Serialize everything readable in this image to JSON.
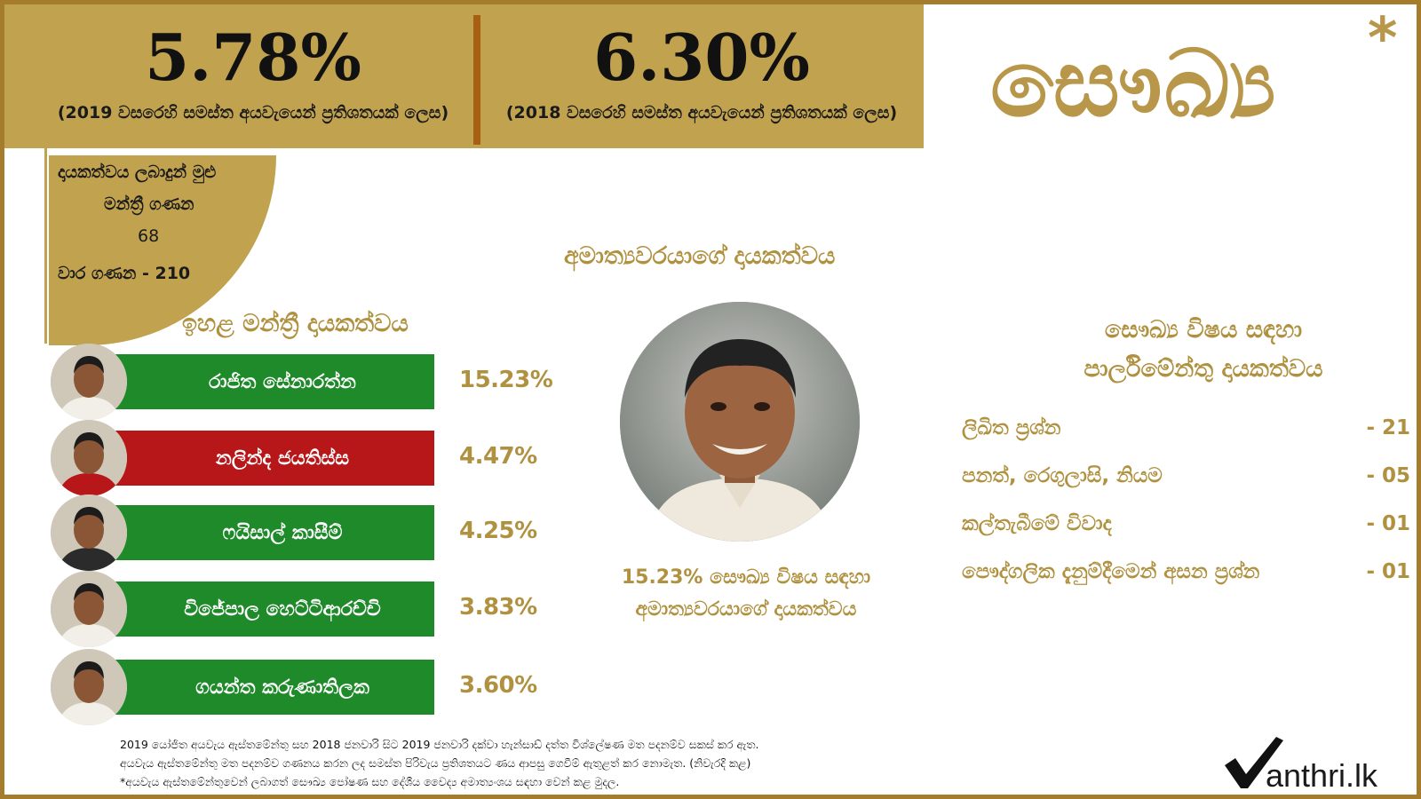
{
  "header": {
    "stat_2019": {
      "value": "5.78%",
      "caption": "(2019 වසරෙහි සමස්ත අයවැයෙන් ප්‍රතිශතයක් ලෙස)"
    },
    "stat_2018": {
      "value": "6.30%",
      "caption": "(2018 වසරෙහි සමස්ත අයවැයෙන් ප්‍රතිශතයක් ලෙස)"
    },
    "title": "සෞඛ්‍ය",
    "title_asterisk": "*"
  },
  "totals": {
    "label_line1": "දායකත්වය ලබාදුන් මුළු",
    "label_line2": "මන්ත්‍රී ගණන",
    "members_count": "68",
    "turns_label": "වාර ගණන - 210"
  },
  "top_members": {
    "title": "ඉහළ මන්ත්‍රී දායකත්වය",
    "items": [
      {
        "name": "රාජිත සේනාරත්න",
        "percent": "15.23%",
        "bar_color": "#1f8a2a"
      },
      {
        "name": "නලින්ද ජයතිස්ස",
        "percent": "4.47%",
        "bar_color": "#b8171a"
      },
      {
        "name": "ෆයිසාල් කාසීම්",
        "percent": "4.25%",
        "bar_color": "#1f8a2a"
      },
      {
        "name": "විජේපාල හෙට්ටිආරච්චි",
        "percent": "3.83%",
        "bar_color": "#1f8a2a"
      },
      {
        "name": "ගයන්ත කරුණාතිලක",
        "percent": "3.60%",
        "bar_color": "#1f8a2a"
      }
    ]
  },
  "minister": {
    "heading": "අමාත්‍යවරයාගේ දායකත්වය",
    "caption_line1": "15.23% සෞඛ්‍ය විෂය සඳහා",
    "caption_line2": "අමාත්‍යවරයාගේ දායකත්වය"
  },
  "parliament": {
    "heading_line1": "සෞඛ්‍ය විෂය සඳහා",
    "heading_line2": "පාර්ලිමේන්තු දායකත්වය",
    "items": [
      {
        "label": "ලිඛිත ප්‍රශ්න",
        "value": "- 21"
      },
      {
        "label": "පනත්, රෙගුලාසි, නියම",
        "value": "- 05"
      },
      {
        "label": "කල්තැබීමේ විවාද",
        "value": "- 01"
      },
      {
        "label": "පෞද්ගලික දැනුම්දීමෙන් අසන ප්‍රශ්න",
        "value": "- 01"
      }
    ]
  },
  "footnotes": {
    "line1": "2019 යෝජිත අයවැය ඇස්තමේන්තු සහ 2018 ජනවාරි සිට 2019 ජනවාරි දක්වා හැන්සාඩ් දත්ත විශ්ලේෂණ මත පදනම්ව සකස් කර ඇත.",
    "line2": "අයවැය ඇස්තමේන්තු මත පදනම්ව ගණනය කරන ලද සමස්ත පිරිවැය ප්‍රතිශතයට ණය ආපසු ගෙවීම් ඇතුළත් කර නොමැත. (නිවැරදි කළ)",
    "line3": "*අයවැය ඇස්තමේන්තුවෙන් ලබාගත් සෞඛ්‍ය පෝෂණ සහ දේශීය වෛද්‍ය අමාත්‍යංශය සඳහා වෙන් කළ මුදල."
  },
  "logo": {
    "text": "anthri.lk"
  }
}
